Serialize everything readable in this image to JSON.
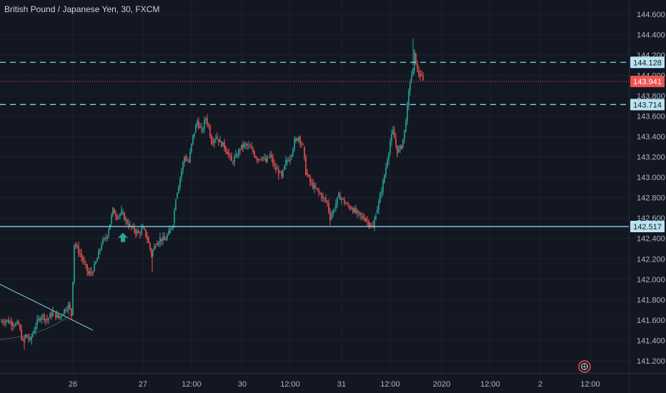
{
  "header": {
    "title": "British Pound / Japanese Yen, 30, FXCM"
  },
  "chart_data": {
    "type": "candlestick",
    "title": "British Pound / Japanese Yen, 30, FXCM",
    "ylim": [
      141.08,
      144.74
    ],
    "y_ticks": [
      "141.200",
      "141.400",
      "141.600",
      "141.800",
      "142.000",
      "142.200",
      "142.400",
      "142.600",
      "142.800",
      "143.000",
      "143.200",
      "143.400",
      "143.600",
      "143.800",
      "144.000",
      "144.200",
      "144.400",
      "144.600"
    ],
    "x_ticks": [
      "26",
      "27",
      "12:00",
      "30",
      "12:00",
      "31",
      "12:00",
      "2020",
      "12:00",
      "2",
      "12:00"
    ],
    "price_levels": [
      {
        "value": 144.128,
        "label": "144.128",
        "style": "dashed",
        "color": "#7fd4e8"
      },
      {
        "value": 143.941,
        "label": "143.941",
        "style": "dotted",
        "color": "#ef5350"
      },
      {
        "value": 143.714,
        "label": "143.714",
        "style": "dashed",
        "color": "#7fd4e8"
      },
      {
        "value": 142.517,
        "label": "142.517",
        "style": "solid",
        "color": "#7fd4e8"
      }
    ],
    "colors": {
      "up": "#26a69a",
      "down": "#ef5350",
      "background": "#131722",
      "grid": "#1e222d",
      "level": "#7fd4e8"
    },
    "grid": true,
    "close_path": [
      [
        0,
        141.58
      ],
      [
        8,
        141.6
      ],
      [
        16,
        141.57
      ],
      [
        26,
        141.55
      ],
      [
        32,
        141.38
      ],
      [
        36,
        141.45
      ],
      [
        42,
        141.4
      ],
      [
        50,
        141.55
      ],
      [
        58,
        141.65
      ],
      [
        66,
        141.6
      ],
      [
        74,
        141.68
      ],
      [
        82,
        141.62
      ],
      [
        90,
        141.7
      ],
      [
        96,
        141.75
      ],
      [
        100,
        141.65
      ],
      [
        104,
        142.35
      ],
      [
        112,
        142.25
      ],
      [
        118,
        142.15
      ],
      [
        124,
        142.05
      ],
      [
        130,
        142.08
      ],
      [
        136,
        142.2
      ],
      [
        142,
        142.35
      ],
      [
        148,
        142.4
      ],
      [
        154,
        142.55
      ],
      [
        158,
        142.68
      ],
      [
        164,
        142.62
      ],
      [
        170,
        142.65
      ],
      [
        176,
        142.58
      ],
      [
        182,
        142.52
      ],
      [
        188,
        142.48
      ],
      [
        194,
        142.45
      ],
      [
        200,
        142.5
      ],
      [
        206,
        142.4
      ],
      [
        212,
        142.25
      ],
      [
        218,
        142.35
      ],
      [
        224,
        142.4
      ],
      [
        230,
        142.38
      ],
      [
        236,
        142.45
      ],
      [
        242,
        142.55
      ],
      [
        246,
        142.8
      ],
      [
        252,
        143.0
      ],
      [
        258,
        143.2
      ],
      [
        264,
        143.15
      ],
      [
        270,
        143.4
      ],
      [
        276,
        143.55
      ],
      [
        282,
        143.45
      ],
      [
        288,
        143.58
      ],
      [
        292,
        143.5
      ],
      [
        296,
        143.35
      ],
      [
        302,
        143.4
      ],
      [
        308,
        143.35
      ],
      [
        314,
        143.3
      ],
      [
        318,
        143.25
      ],
      [
        324,
        143.15
      ],
      [
        330,
        143.2
      ],
      [
        336,
        143.28
      ],
      [
        342,
        143.32
      ],
      [
        348,
        143.3
      ],
      [
        354,
        143.25
      ],
      [
        360,
        143.18
      ],
      [
        366,
        143.2
      ],
      [
        372,
        143.15
      ],
      [
        378,
        143.22
      ],
      [
        384,
        143.1
      ],
      [
        390,
        143.05
      ],
      [
        394,
        143.0
      ],
      [
        400,
        143.15
      ],
      [
        406,
        143.2
      ],
      [
        412,
        143.35
      ],
      [
        418,
        143.4
      ],
      [
        424,
        143.3
      ],
      [
        428,
        143.05
      ],
      [
        434,
        142.95
      ],
      [
        440,
        142.9
      ],
      [
        446,
        142.85
      ],
      [
        452,
        142.8
      ],
      [
        458,
        142.75
      ],
      [
        462,
        142.6
      ],
      [
        468,
        142.7
      ],
      [
        474,
        142.82
      ],
      [
        480,
        142.78
      ],
      [
        486,
        142.72
      ],
      [
        492,
        142.7
      ],
      [
        498,
        142.65
      ],
      [
        504,
        142.62
      ],
      [
        510,
        142.6
      ],
      [
        516,
        142.55
      ],
      [
        522,
        142.5
      ],
      [
        526,
        142.65
      ],
      [
        530,
        142.75
      ],
      [
        536,
        142.95
      ],
      [
        540,
        143.1
      ],
      [
        546,
        143.35
      ],
      [
        550,
        143.45
      ],
      [
        556,
        143.25
      ],
      [
        562,
        143.3
      ],
      [
        566,
        143.45
      ],
      [
        570,
        143.7
      ],
      [
        574,
        143.95
      ],
      [
        578,
        144.05
      ],
      [
        580,
        144.22
      ],
      [
        584,
        144.05
      ],
      [
        588,
        144.0
      ],
      [
        592,
        143.94
      ]
    ],
    "trendline": [
      [
        0,
        141.95
      ],
      [
        130,
        141.5
      ]
    ],
    "arrow_marker": {
      "x": 172,
      "y": 142.4,
      "direction": "up",
      "color": "#26a69a"
    },
    "x_tick_positions": [
      102,
      200,
      268,
      339,
      406,
      478,
      546,
      618,
      686,
      756,
      826
    ]
  }
}
